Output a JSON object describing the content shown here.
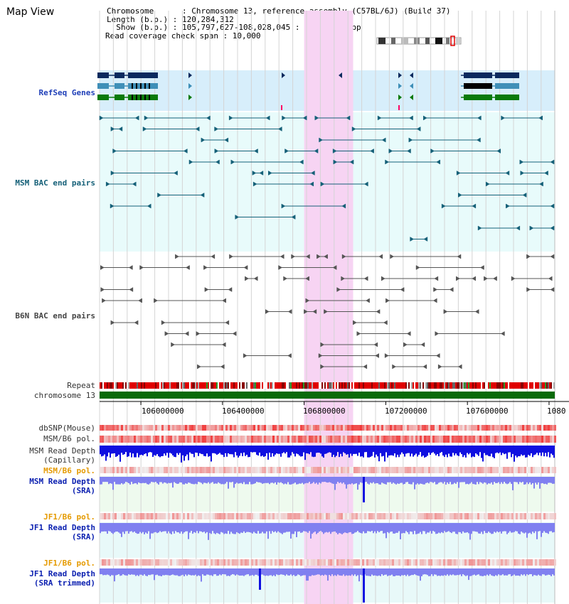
{
  "title": "Map View",
  "info": {
    "chromosome_line": "Chromosome      : Chromosome 13, reference assembly (C57BL/6J) (Build 37)",
    "length_line": "Length (b.p.) : 120,284,312",
    "show_line": "  Show (b.p.) : 105,797,627-108,028,045 : 2,230,419 bp",
    "coverage_line": "Read coverage check span : 10,000"
  },
  "tracks": {
    "refseq": "RefSeq Genes",
    "msm_bac": "MSM BAC end pairs",
    "b6n_bac": "B6N BAC end pairs",
    "repeat": "Repeat",
    "chromosome": "chromosome 13",
    "dbsnp": "dbSNP(Mouse)",
    "msm_b6_pol": "MSM/B6 pol.",
    "msm_depth_cap_1": "MSM Read Depth",
    "msm_depth_cap_2": "(Capillary)",
    "msm_b6_pol2": "MSM/B6 pol.",
    "msm_depth_sra_1": "MSM Read Depth",
    "msm_depth_sra_2": "(SRA)",
    "jf1_b6_pol": "JF1/B6 pol.",
    "jf1_depth_sra_1": "JF1 Read Depth",
    "jf1_depth_sra_2": "(SRA)",
    "jf1_b6_pol2": "JF1/B6 pol.",
    "jf1_depth_trim_1": "JF1 Read Depth",
    "jf1_depth_trim_2": "(SRA trimmed)"
  },
  "axis": {
    "start": 105797627,
    "end": 108028045,
    "ticks": [
      "106000000",
      "106400000",
      "106800000",
      "107200000",
      "107600000",
      "1080"
    ]
  },
  "highlight": {
    "from": 106800000,
    "to": 107040000
  },
  "colors": {
    "refseq_bg": "#d7eefb",
    "msm_bg": "#e8fbfb",
    "highlight": "#f7d4f3",
    "gene_dark": "#0b2a5e",
    "gene_mid": "#3f8fb8",
    "gene_green": "#0a7a0a",
    "msm_line": "#156078",
    "b6n_line": "#555555",
    "chromosome": "#0a6a0a",
    "depth_blue": "#1010e0",
    "depth_light": "#8080f0"
  }
}
